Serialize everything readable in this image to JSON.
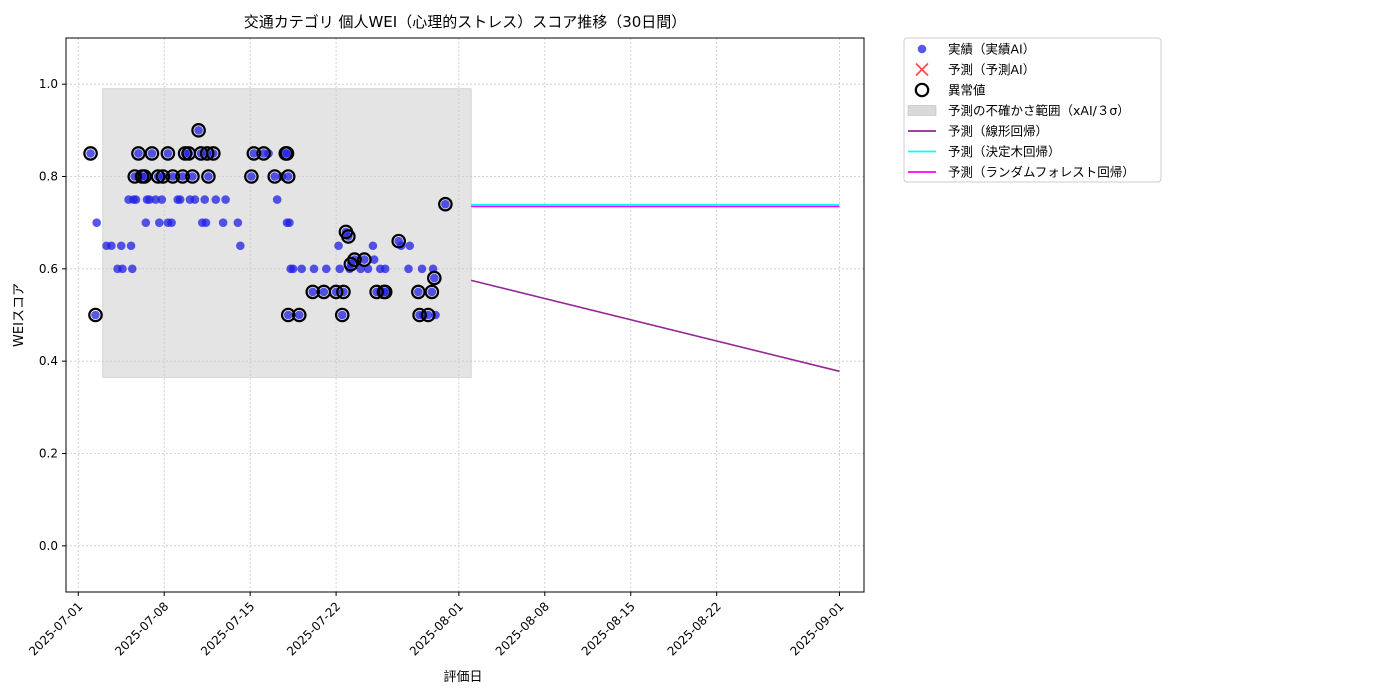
{
  "chart_data": {
    "type": "scatter",
    "title": "交通カテゴリ 個人WEI（心理的ストレス）スコア推移（30日間）",
    "xlabel": "評価日",
    "ylabel": "WEIスコア",
    "xlim": [
      "2025-06-30",
      "2025-09-03"
    ],
    "ylim": [
      -0.1,
      1.1
    ],
    "x_ticks": [
      "2025-07-01",
      "2025-07-08",
      "2025-07-15",
      "2025-07-22",
      "2025-08-01",
      "2025-08-08",
      "2025-08-15",
      "2025-08-22",
      "2025-09-01"
    ],
    "y_ticks": [
      0.0,
      0.2,
      0.4,
      0.6,
      0.8,
      1.0
    ],
    "y_tick_labels": [
      "0.0",
      "0.2",
      "0.4",
      "0.6",
      "0.8",
      "1.0"
    ],
    "grid": true,
    "legend_position": "outside-right",
    "legend": [
      {
        "label": "実績（実績AI）",
        "kind": "scatter",
        "color": "#1f1fe6"
      },
      {
        "label": "予測（予測AI）",
        "kind": "x",
        "color": "#ff4d4d"
      },
      {
        "label": "異常値",
        "kind": "ring",
        "color": "#000000"
      },
      {
        "label": "予測の不確かさ範囲（xAI/３σ）",
        "kind": "band",
        "color": "#d9d9d9"
      },
      {
        "label": "予測（線形回帰）",
        "kind": "line",
        "color": "#912891"
      },
      {
        "label": "予測（決定木回帰）",
        "kind": "line",
        "color": "#00ffff"
      },
      {
        "label": "予測（ランダムフォレスト回帰）",
        "kind": "line",
        "color": "#ff00ff"
      }
    ],
    "uncertainty_band": {
      "x_start": "2025-07-03",
      "x_end": "2025-08-02",
      "y_low": 0.365,
      "y_high": 0.99
    },
    "actual": [
      [
        "2025-07-02",
        0.85
      ],
      [
        "2025-07-02.5",
        0.7
      ],
      [
        "2025-07-02.4",
        0.5
      ],
      [
        "2025-07-03.3",
        0.65
      ],
      [
        "2025-07-03.7",
        0.65
      ],
      [
        "2025-07-04.2",
        0.6
      ],
      [
        "2025-07-04.5",
        0.65
      ],
      [
        "2025-07-04.6",
        0.6
      ],
      [
        "2025-07-05.1",
        0.75
      ],
      [
        "2025-07-05.3",
        0.65
      ],
      [
        "2025-07-05.4",
        0.6
      ],
      [
        "2025-07-05.5",
        0.75
      ],
      [
        "2025-07-05.6",
        0.8
      ],
      [
        "2025-07-05.7",
        0.75
      ],
      [
        "2025-07-05.9",
        0.85
      ],
      [
        "2025-07-06.2",
        0.8
      ],
      [
        "2025-07-06.5",
        0.7
      ],
      [
        "2025-07-06.4",
        0.8
      ],
      [
        "2025-07-06.6",
        0.75
      ],
      [
        "2025-07-06.8",
        0.75
      ],
      [
        "2025-07-07.0",
        0.85
      ],
      [
        "2025-07-07.3",
        0.75
      ],
      [
        "2025-07-07.5",
        0.8
      ],
      [
        "2025-07-07.6",
        0.7
      ],
      [
        "2025-07-07.8",
        0.75
      ],
      [
        "2025-07-07.9",
        0.8
      ],
      [
        "2025-07-08.3",
        0.85
      ],
      [
        "2025-07-08.3",
        0.7
      ],
      [
        "2025-07-08.6",
        0.7
      ],
      [
        "2025-07-08.7",
        0.8
      ],
      [
        "2025-07-09.1",
        0.75
      ],
      [
        "2025-07-09.3",
        0.75
      ],
      [
        "2025-07-09.5",
        0.8
      ],
      [
        "2025-07-09.7",
        0.85
      ],
      [
        "2025-07-10.0",
        0.85
      ],
      [
        "2025-07-10.1",
        0.75
      ],
      [
        "2025-07-10.3",
        0.8
      ],
      [
        "2025-07-10.5",
        0.75
      ],
      [
        "2025-07-10.8",
        0.9
      ],
      [
        "2025-07-11.0",
        0.85
      ],
      [
        "2025-07-11.1",
        0.7
      ],
      [
        "2025-07-11.3",
        0.75
      ],
      [
        "2025-07-11.4",
        0.7
      ],
      [
        "2025-07-11.5",
        0.85
      ],
      [
        "2025-07-11.6",
        0.8
      ],
      [
        "2025-07-12.0",
        0.85
      ],
      [
        "2025-07-12.2",
        0.75
      ],
      [
        "2025-07-12.8",
        0.7
      ],
      [
        "2025-07-13.0",
        0.75
      ],
      [
        "2025-07-14.0",
        0.7
      ],
      [
        "2025-07-14.2",
        0.65
      ],
      [
        "2025-07-15.1",
        0.8
      ],
      [
        "2025-07-15.3",
        0.85
      ],
      [
        "2025-07-16.1",
        0.85
      ],
      [
        "2025-07-16.5",
        0.85
      ],
      [
        "2025-07-17.0",
        0.8
      ],
      [
        "2025-07-17.2",
        0.75
      ],
      [
        "2025-07-17.6",
        0.8
      ],
      [
        "2025-07-17.9",
        0.85
      ],
      [
        "2025-07-18.0",
        0.7
      ],
      [
        "2025-07-18.0",
        0.85
      ],
      [
        "2025-07-18.1",
        0.8
      ],
      [
        "2025-07-18.2",
        0.7
      ],
      [
        "2025-07-18.3",
        0.6
      ],
      [
        "2025-07-18.1",
        0.5
      ],
      [
        "2025-07-18.5",
        0.6
      ],
      [
        "2025-07-19.0",
        0.5
      ],
      [
        "2025-07-19.2",
        0.6
      ],
      [
        "2025-07-20.1",
        0.55
      ],
      [
        "2025-07-20.2",
        0.6
      ],
      [
        "2025-07-21.0",
        0.55
      ],
      [
        "2025-07-21.2",
        0.6
      ],
      [
        "2025-07-22.0",
        0.55
      ],
      [
        "2025-07-22.2",
        0.65
      ],
      [
        "2025-07-22.3",
        0.6
      ],
      [
        "2025-07-22.5",
        0.5
      ],
      [
        "2025-07-22.6",
        0.55
      ],
      [
        "2025-07-22.8",
        0.68
      ],
      [
        "2025-07-23.0",
        0.67
      ],
      [
        "2025-07-23.1",
        0.6
      ],
      [
        "2025-07-23.2",
        0.61
      ],
      [
        "2025-07-23.5",
        0.62
      ],
      [
        "2025-07-24.0",
        0.6
      ],
      [
        "2025-07-24.3",
        0.62
      ],
      [
        "2025-07-24.6",
        0.6
      ],
      [
        "2025-07-25.0",
        0.65
      ],
      [
        "2025-07-25.1",
        0.62
      ],
      [
        "2025-07-25.3",
        0.55
      ],
      [
        "2025-07-25.6",
        0.6
      ],
      [
        "2025-07-25.9",
        0.55
      ],
      [
        "2025-07-26.0",
        0.6
      ],
      [
        "2025-07-26.0",
        0.55
      ],
      [
        "2025-07-27.1",
        0.66
      ],
      [
        "2025-07-27.3",
        0.65
      ],
      [
        "2025-07-27.9",
        0.6
      ],
      [
        "2025-07-28.0",
        0.65
      ],
      [
        "2025-07-28.7",
        0.55
      ],
      [
        "2025-07-28.8",
        0.5
      ],
      [
        "2025-07-29.0",
        0.6
      ],
      [
        "2025-07-29.1",
        0.5
      ],
      [
        "2025-07-29.5",
        0.5
      ],
      [
        "2025-07-29.8",
        0.55
      ],
      [
        "2025-07-29.9",
        0.6
      ],
      [
        "2025-07-30.0",
        0.58
      ],
      [
        "2025-07-30.1",
        0.5
      ],
      [
        "2025-07-30.9",
        0.74
      ]
    ],
    "anomalies": [
      [
        "2025-07-02",
        0.85
      ],
      [
        "2025-07-02.4",
        0.5
      ],
      [
        "2025-07-05.6",
        0.8
      ],
      [
        "2025-07-05.9",
        0.85
      ],
      [
        "2025-07-06.2",
        0.8
      ],
      [
        "2025-07-06.4",
        0.8
      ],
      [
        "2025-07-07.0",
        0.85
      ],
      [
        "2025-07-07.5",
        0.8
      ],
      [
        "2025-07-07.9",
        0.8
      ],
      [
        "2025-07-08.3",
        0.85
      ],
      [
        "2025-07-08.7",
        0.8
      ],
      [
        "2025-07-09.5",
        0.8
      ],
      [
        "2025-07-09.7",
        0.85
      ],
      [
        "2025-07-10.0",
        0.85
      ],
      [
        "2025-07-10.3",
        0.8
      ],
      [
        "2025-07-10.8",
        0.9
      ],
      [
        "2025-07-11.0",
        0.85
      ],
      [
        "2025-07-11.5",
        0.85
      ],
      [
        "2025-07-11.6",
        0.8
      ],
      [
        "2025-07-12.0",
        0.85
      ],
      [
        "2025-07-15.1",
        0.8
      ],
      [
        "2025-07-15.3",
        0.85
      ],
      [
        "2025-07-16.1",
        0.85
      ],
      [
        "2025-07-17.0",
        0.8
      ],
      [
        "2025-07-17.9",
        0.85
      ],
      [
        "2025-07-18.0",
        0.85
      ],
      [
        "2025-07-18.1",
        0.8
      ],
      [
        "2025-07-18.1",
        0.5
      ],
      [
        "2025-07-19.0",
        0.5
      ],
      [
        "2025-07-20.1",
        0.55
      ],
      [
        "2025-07-21.0",
        0.55
      ],
      [
        "2025-07-22.0",
        0.55
      ],
      [
        "2025-07-22.5",
        0.5
      ],
      [
        "2025-07-22.6",
        0.55
      ],
      [
        "2025-07-22.8",
        0.68
      ],
      [
        "2025-07-23.0",
        0.67
      ],
      [
        "2025-07-23.2",
        0.61
      ],
      [
        "2025-07-23.5",
        0.62
      ],
      [
        "2025-07-24.3",
        0.62
      ],
      [
        "2025-07-25.3",
        0.55
      ],
      [
        "2025-07-25.9",
        0.55
      ],
      [
        "2025-07-26.0",
        0.55
      ],
      [
        "2025-07-27.1",
        0.66
      ],
      [
        "2025-07-28.7",
        0.55
      ],
      [
        "2025-07-28.8",
        0.5
      ],
      [
        "2025-07-29.5",
        0.5
      ],
      [
        "2025-07-29.8",
        0.55
      ],
      [
        "2025-07-30.0",
        0.58
      ],
      [
        "2025-07-30.9",
        0.74
      ]
    ],
    "forecast_lines": [
      {
        "name": "予測（線形回帰）",
        "color": "#912891",
        "x": [
          "2025-08-02",
          "2025-09-01"
        ],
        "y": [
          0.575,
          0.378
        ]
      },
      {
        "name": "予測（決定木回帰）",
        "color": "#00ffff",
        "x": [
          "2025-08-02",
          "2025-09-01"
        ],
        "y": [
          0.739,
          0.739
        ]
      },
      {
        "name": "予測（ランダムフォレスト回帰）",
        "color": "#ff00ff",
        "x": [
          "2025-08-02",
          "2025-09-01"
        ],
        "y": [
          0.735,
          0.735
        ]
      }
    ]
  }
}
